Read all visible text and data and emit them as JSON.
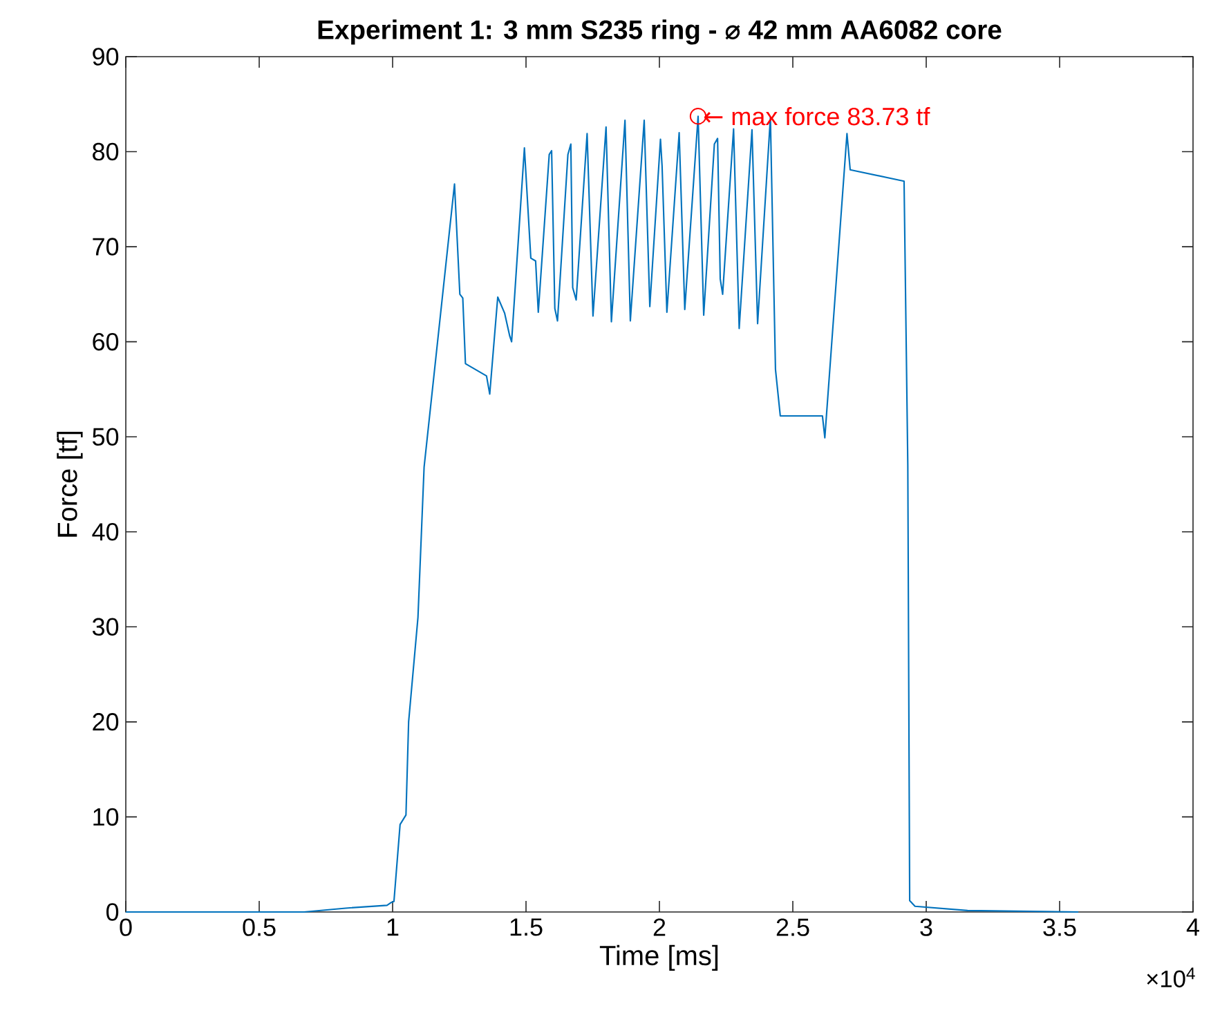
{
  "chart_data": {
    "type": "line",
    "title": "Experiment 1: 3 mm S235 ring - ⌀ 42 mm AA6082 core",
    "xlabel": "Time [ms]",
    "ylabel": "Force [tf]",
    "x": [
      0,
      0.668,
      0.824,
      0.979,
      0.995,
      1.005,
      1.028,
      1.05,
      1.06,
      1.095,
      1.118,
      1.232,
      1.252,
      1.263,
      1.273,
      1.352,
      1.364,
      1.394,
      1.42,
      1.439,
      1.446,
      1.494,
      1.518,
      1.536,
      1.546,
      1.587,
      1.596,
      1.608,
      1.618,
      1.657,
      1.668,
      1.675,
      1.688,
      1.729,
      1.751,
      1.8,
      1.82,
      1.871,
      1.891,
      1.943,
      1.964,
      2.004,
      2.01,
      2.028,
      2.074,
      2.095,
      2.145,
      2.166,
      2.206,
      2.218,
      2.228,
      2.237,
      2.278,
      2.299,
      2.347,
      2.368,
      2.416,
      2.435,
      2.453,
      2.611,
      2.62,
      2.703,
      2.715,
      2.917,
      2.931,
      2.938,
      2.958,
      3.155,
      3.57
    ],
    "values": [
      0,
      0,
      0.4,
      0.7,
      1.0,
      1.1,
      9.2,
      10.2,
      20,
      31,
      46.8,
      76.6,
      65,
      64.6,
      57.7,
      56.4,
      54.5,
      64.7,
      63.0,
      60.6,
      60,
      80.4,
      68.8,
      68.5,
      63.1,
      79.7,
      80.1,
      63.5,
      62.2,
      79.7,
      80.8,
      65.7,
      64.4,
      81.9,
      62.7,
      82.6,
      62.1,
      83.3,
      62.2,
      83.3,
      63.7,
      81.3,
      78.5,
      63.1,
      82.0,
      63.4,
      83.73,
      62.8,
      80.8,
      81.4,
      66.6,
      65,
      82.4,
      61.4,
      82.3,
      61.9,
      83.6,
      57.1,
      52.2,
      52.2,
      49.9,
      81.9,
      78.1,
      76.9,
      47,
      1.2,
      0.6,
      0.15,
      0
    ],
    "color": "#0072bd",
    "marker": "none",
    "line_style": "solid",
    "grid": false,
    "xlim": [
      0,
      4
    ],
    "ylim": [
      0,
      90
    ],
    "xticks": [
      0,
      0.5,
      1,
      1.5,
      2,
      2.5,
      3,
      3.5,
      4
    ],
    "yticks": [
      0,
      10,
      20,
      30,
      40,
      50,
      60,
      70,
      80,
      90
    ],
    "annotations": [
      {
        "text": "← max force 83.73 tf",
        "x": 2.145,
        "y": 83.73
      },
      "×10$^{4}$"
    ]
  }
}
